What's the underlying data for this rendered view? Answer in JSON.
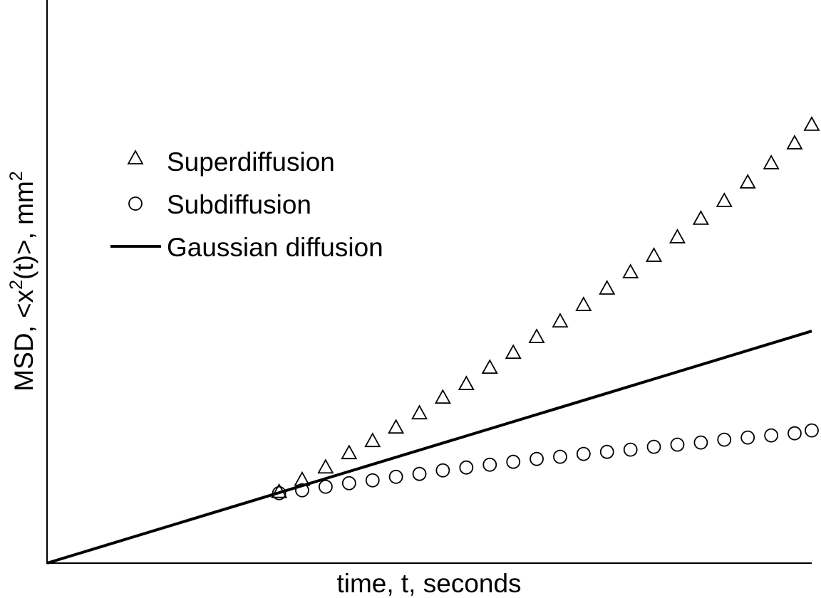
{
  "chart_data": {
    "type": "scatter",
    "xlabel": "time, t, seconds",
    "ylabel": {
      "prefix": "MSD, <x",
      "sup1": "2",
      "middle": "(t)>, mm",
      "sup2": "2"
    },
    "xlim": [
      0,
      1
    ],
    "ylim": [
      0,
      1
    ],
    "axis_ticks": "none",
    "grid": false,
    "legend_position": "top-left",
    "series": [
      {
        "name": "Superdiffusion",
        "kind": "scatter",
        "marker": "triangle",
        "color": "#000000",
        "x": [
          0.3035,
          0.3336,
          0.3643,
          0.395,
          0.4257,
          0.4563,
          0.487,
          0.5176,
          0.5483,
          0.579,
          0.6097,
          0.6403,
          0.671,
          0.7016,
          0.7323,
          0.763,
          0.7936,
          0.8243,
          0.855,
          0.8856,
          0.9163,
          0.947,
          0.9776,
          1.0
        ],
        "y": [
          0.1268,
          0.1483,
          0.1704,
          0.1957,
          0.2172,
          0.2412,
          0.2665,
          0.2943,
          0.3184,
          0.3475,
          0.374,
          0.4019,
          0.4297,
          0.4588,
          0.488,
          0.517,
          0.5462,
          0.5791,
          0.612,
          0.6436,
          0.6765,
          0.7106,
          0.746,
          0.7789
        ]
      },
      {
        "name": "Subdiffusion",
        "kind": "scatter",
        "marker": "circle",
        "color": "#000000",
        "x": [
          0.3035,
          0.3336,
          0.3643,
          0.395,
          0.4257,
          0.4563,
          0.487,
          0.5176,
          0.5483,
          0.579,
          0.6097,
          0.6403,
          0.671,
          0.7016,
          0.7323,
          0.763,
          0.7936,
          0.8243,
          0.855,
          0.8856,
          0.9163,
          0.947,
          0.9776,
          1.0
        ],
        "y": [
          0.1242,
          0.1293,
          0.1356,
          0.1419,
          0.147,
          0.1533,
          0.1584,
          0.1647,
          0.1698,
          0.1748,
          0.1799,
          0.185,
          0.1888,
          0.1939,
          0.1976,
          0.2015,
          0.2065,
          0.2103,
          0.2141,
          0.2192,
          0.223,
          0.2268,
          0.2305,
          0.2356
        ]
      },
      {
        "name": "Gaussian diffusion",
        "kind": "line",
        "color": "#000000",
        "x": [
          0,
          1
        ],
        "y": [
          0,
          0.412
        ]
      }
    ]
  }
}
